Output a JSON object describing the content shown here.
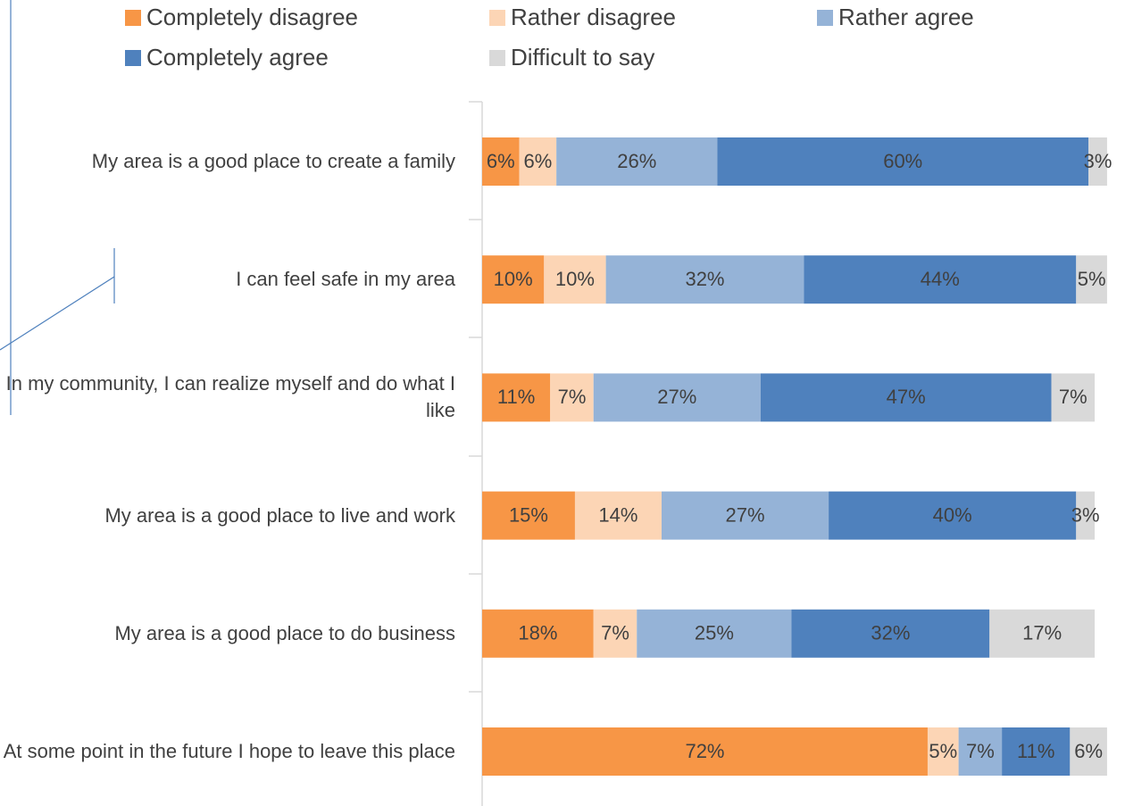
{
  "chart_data": {
    "type": "stacked-bar-horizontal",
    "categories": [
      "My area is a good place to create a family",
      "I can feel safe in my area",
      "In my community, I can realize myself and do what I like",
      "My area is a good place to live and work",
      "My area is a good place to do business",
      "At some point in the future I hope to leave this place"
    ],
    "series": [
      {
        "name": "Completely disagree",
        "color": "#f79646",
        "values": [
          6,
          10,
          11,
          15,
          18,
          72
        ],
        "value_labels": [
          "6%",
          "10%",
          "11%",
          "15%",
          "18%",
          "72%"
        ]
      },
      {
        "name": "Rather disagree",
        "color": "#fcd5b5",
        "values": [
          6,
          10,
          7,
          14,
          7,
          5
        ],
        "value_labels": [
          "6%",
          "10%",
          "7%",
          "14%",
          "7%",
          "5%"
        ]
      },
      {
        "name": "Rather agree",
        "color": "#95b3d7",
        "values": [
          26,
          32,
          27,
          27,
          25,
          7
        ],
        "value_labels": [
          "26%",
          "32%",
          "27%",
          "27%",
          "25%",
          "7%"
        ]
      },
      {
        "name": "Completely agree",
        "color": "#4f81bd",
        "values": [
          60,
          44,
          47,
          40,
          32,
          11
        ],
        "value_labels": [
          "60%",
          "44%",
          "47%",
          "40%",
          "32%",
          "11%"
        ]
      },
      {
        "name": "Difficult to say",
        "color": "#d9d9d9",
        "values": [
          3,
          5,
          7,
          3,
          17,
          6
        ],
        "value_labels": [
          "3%",
          "5%",
          "7%",
          "3%",
          "17%",
          "6%"
        ]
      }
    ]
  }
}
